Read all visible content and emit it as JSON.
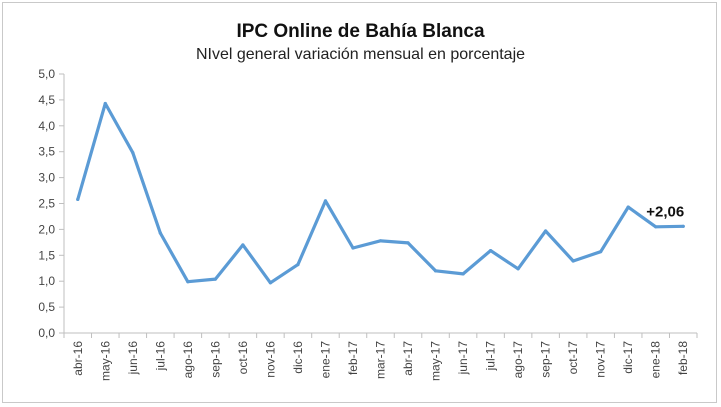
{
  "chart_data": {
    "type": "line",
    "title": "IPC Online de Bahía Blanca",
    "subtitle": "NIvel general variación mensual en porcentaje",
    "xlabel": "",
    "ylabel": "",
    "categories": [
      "abr-16",
      "may-16",
      "jun-16",
      "jul-16",
      "ago-16",
      "sep-16",
      "oct-16",
      "nov-16",
      "dic-16",
      "ene-17",
      "feb-17",
      "mar-17",
      "abr-17",
      "may-17",
      "jun-17",
      "jul-17",
      "ago-17",
      "sep-17",
      "oct-17",
      "nov-17",
      "dic-17",
      "ene-18",
      "feb-18"
    ],
    "series": [
      {
        "values": [
          2.58,
          4.43,
          3.48,
          1.93,
          0.99,
          1.04,
          1.7,
          0.97,
          1.32,
          2.55,
          1.64,
          1.78,
          1.74,
          1.2,
          1.14,
          1.59,
          1.24,
          1.97,
          1.39,
          1.57,
          2.43,
          2.05,
          2.06
        ],
        "color": "#5b9bd5"
      }
    ],
    "ylim": [
      0,
      5
    ],
    "ytick_step": 0.5,
    "ytick_labels": [
      "0,0",
      "0,5",
      "1,0",
      "1,5",
      "2,0",
      "2,5",
      "3,0",
      "3,5",
      "4,0",
      "4,5",
      "5,0"
    ],
    "grid": false,
    "legend": "none",
    "annotation": {
      "category": "feb-18",
      "text": "+2,06"
    }
  }
}
